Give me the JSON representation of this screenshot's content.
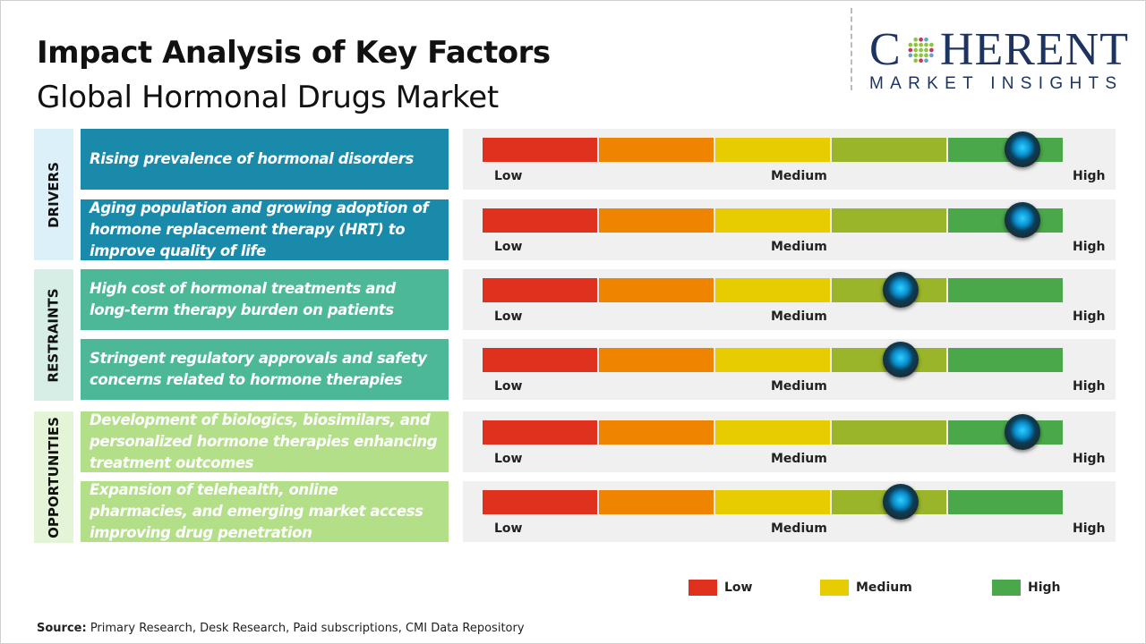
{
  "title": "Impact Analysis of Key Factors",
  "subtitle": "Global Hormonal Drugs Market",
  "logo": {
    "top": "COHERENT",
    "bottom": "MARKET INSIGHTS"
  },
  "scale": {
    "low": "Low",
    "medium": "Medium",
    "high": "High",
    "colors": [
      "#e0301e",
      "#ee8400",
      "#e6cc00",
      "#9ab52a",
      "#4aa84a"
    ]
  },
  "categories": [
    {
      "label": "DRIVERS",
      "color": "#1a8aab",
      "bg": "#dcf0f9",
      "factors": [
        {
          "text": "Rising prevalence of hormonal disorders",
          "impact": 0.93
        },
        {
          "text": "Aging population and growing adoption of hormone replacement therapy (HRT) to improve quality of life",
          "impact": 0.93
        }
      ]
    },
    {
      "label": "RESTRAINTS",
      "color": "#4db897",
      "bg": "#d6eee6",
      "factors": [
        {
          "text": "High cost of hormonal treatments and long-term therapy burden on patients",
          "impact": 0.72
        },
        {
          "text": "Stringent regulatory approvals and safety concerns related to hormone therapies",
          "impact": 0.72
        }
      ]
    },
    {
      "label": "OPPORTUNITIES",
      "color": "#b3df88",
      "bg": "#e4f4d6",
      "factors": [
        {
          "text": "Development of biologics, biosimilars, and personalized hormone therapies enhancing treatment outcomes",
          "impact": 0.93
        },
        {
          "text": "Expansion of telehealth, online pharmacies, and emerging market access improving drug penetration",
          "impact": 0.72
        }
      ]
    }
  ],
  "legend": [
    {
      "label": "Low",
      "color": "#e0301e"
    },
    {
      "label": "Medium",
      "color": "#e6cc00"
    },
    {
      "label": "High",
      "color": "#4aa84a"
    }
  ],
  "source": {
    "label": "Source:",
    "text": " Primary Research, Desk Research, Paid subscriptions, CMI Data Repository"
  }
}
